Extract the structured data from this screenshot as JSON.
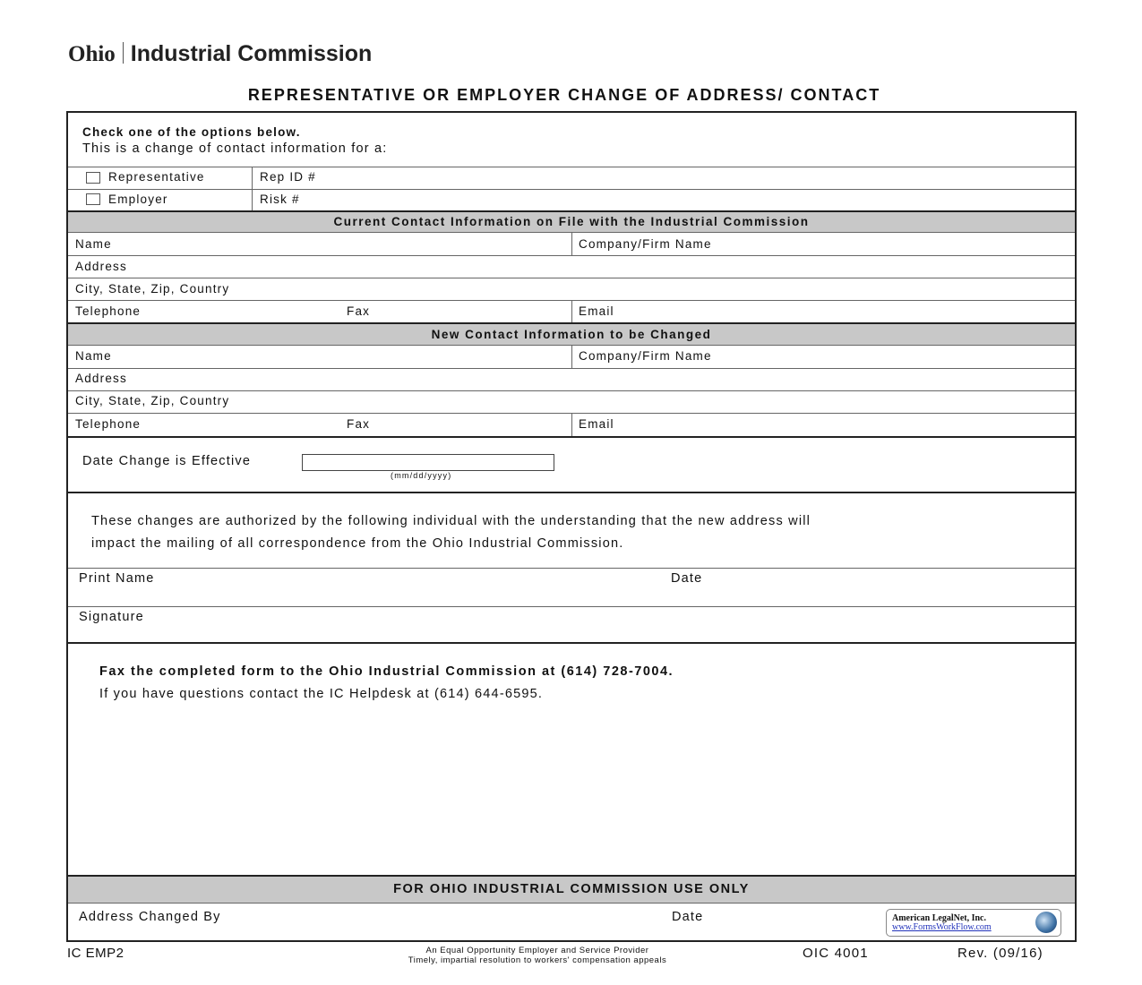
{
  "header": {
    "logo_ohio": "Ohio",
    "logo_name": "Industrial Commission",
    "title": "REPRESENTATIVE OR EMPLOYER CHANGE OF ADDRESS/ CONTACT"
  },
  "intro": {
    "line1": "Check one of the options below.",
    "line2": "This is a change of contact information for a:"
  },
  "options": [
    {
      "label": "Representative",
      "field": "Rep ID #",
      "checked": false
    },
    {
      "label": "Employer",
      "field": "Risk #",
      "checked": false
    }
  ],
  "current": {
    "heading": "Current Contact Information on File with the Industrial Commission",
    "name": "Name",
    "company": "Company/Firm Name",
    "address": "Address",
    "city": "City, State, Zip, Country",
    "telephone": "Telephone",
    "fax": "Fax",
    "email": "Email"
  },
  "new": {
    "heading": "New Contact Information to be Changed",
    "name": "Name",
    "company": "Company/Firm Name",
    "address": "Address",
    "city": "City, State, Zip, Country",
    "telephone": "Telephone",
    "fax": "Fax",
    "email": "Email"
  },
  "effective": {
    "label": "Date Change is Effective",
    "value": "",
    "hint": "(mm/dd/yyyy)"
  },
  "authorization": {
    "line1": "These changes are authorized by the following individual with the understanding that the new address will",
    "line2": "impact the mailing of all correspondence from the Ohio Industrial Commission.",
    "print_name": "Print Name",
    "date": "Date",
    "signature": "Signature"
  },
  "fax_info": {
    "line1": "Fax the completed form to the Ohio Industrial Commission at (614) 728-7004.",
    "line2": "If you have questions contact the IC Helpdesk at (614) 644-6595."
  },
  "office": {
    "heading": "FOR OHIO INDUSTRIAL COMMISSION USE ONLY",
    "changed_by": "Address Changed By",
    "date": "Date"
  },
  "badge": {
    "name": "American LegalNet, Inc.",
    "url": "www.FormsWorkFlow.com"
  },
  "footer": {
    "code": "IC EMP2",
    "line1": "An Equal Opportunity Employer and Service Provider",
    "line2": "Timely, impartial resolution to workers' compensation appeals",
    "form": "OIC 4001",
    "rev": "Rev. (09/16)"
  }
}
